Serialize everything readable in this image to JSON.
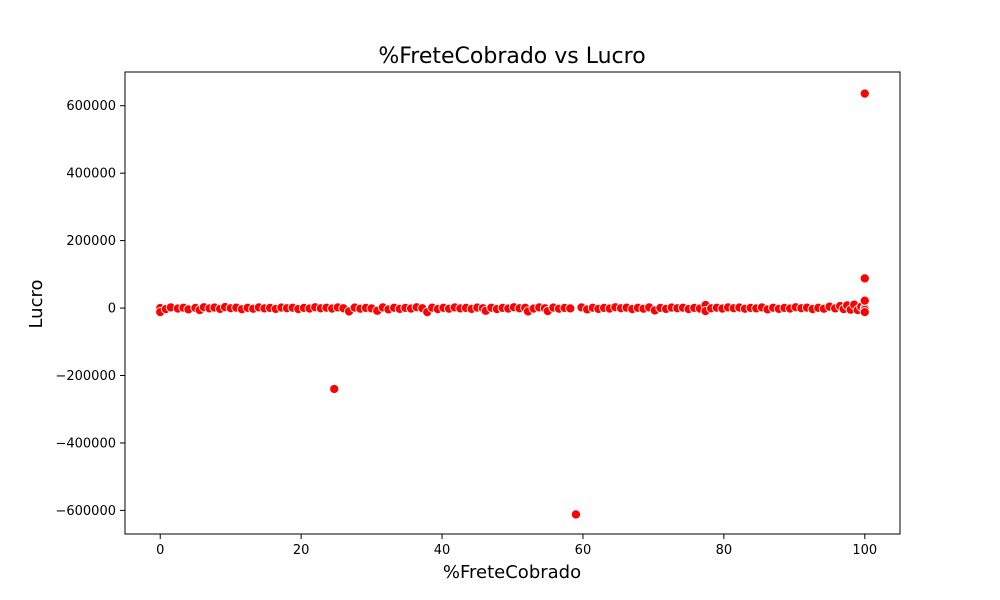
{
  "chart_data": {
    "type": "scatter",
    "title": "%FreteCobrado vs Lucro",
    "xlabel": "%FreteCobrado",
    "ylabel": "Lucro",
    "xlim": [
      -5,
      105
    ],
    "ylim": [
      -670000,
      700000
    ],
    "x_ticks": [
      0,
      20,
      40,
      60,
      80,
      100
    ],
    "x_tick_labels": [
      "0",
      "20",
      "40",
      "60",
      "80",
      "100"
    ],
    "y_ticks": [
      -600000,
      -400000,
      -200000,
      0,
      200000,
      400000,
      600000
    ],
    "y_tick_labels": [
      "−600000",
      "−400000",
      "−200000",
      "0",
      "200000",
      "400000",
      "600000"
    ],
    "grid": false,
    "legend": "none",
    "point_color": "#ff0000",
    "point_edge_color": "#ffffff",
    "series": [
      {
        "points": [
          [
            0,
            0
          ],
          [
            0,
            -12000
          ],
          [
            0.8,
            -3000
          ],
          [
            1.5,
            2000
          ],
          [
            2.5,
            -1500
          ],
          [
            3.3,
            1000
          ],
          [
            4.0,
            -4000
          ],
          [
            5.0,
            500
          ],
          [
            5.6,
            -6000
          ],
          [
            6.2,
            2500
          ],
          [
            7.0,
            -1000
          ],
          [
            7.7,
            1500
          ],
          [
            8.5,
            -2500
          ],
          [
            9.2,
            3000
          ],
          [
            10.0,
            -500
          ],
          [
            10.8,
            1200
          ],
          [
            11.6,
            -3500
          ],
          [
            12.4,
            800
          ],
          [
            13.2,
            -2000
          ],
          [
            14.0,
            2000
          ],
          [
            14.8,
            -1000
          ],
          [
            15.6,
            500
          ],
          [
            16.4,
            -2500
          ],
          [
            17.2,
            1500
          ],
          [
            18.0,
            -500
          ],
          [
            18.8,
            1000
          ],
          [
            19.6,
            -3000
          ],
          [
            20.4,
            500
          ],
          [
            21.2,
            -1500
          ],
          [
            22.0,
            2500
          ],
          [
            22.8,
            -800
          ],
          [
            23.6,
            1000
          ],
          [
            24.4,
            -1500
          ],
          [
            24.7,
            -240000
          ],
          [
            25.2,
            2000
          ],
          [
            26.0,
            -500
          ],
          [
            26.8,
            -10000
          ],
          [
            27.6,
            1500
          ],
          [
            28.4,
            -2000
          ],
          [
            29.2,
            500
          ],
          [
            30.0,
            -1000
          ],
          [
            30.8,
            -8000
          ],
          [
            31.6,
            2000
          ],
          [
            32.4,
            -4000
          ],
          [
            33.2,
            1000
          ],
          [
            34.0,
            -2500
          ],
          [
            34.8,
            500
          ],
          [
            35.6,
            -1500
          ],
          [
            36.4,
            2500
          ],
          [
            37.2,
            -500
          ],
          [
            37.9,
            -12000
          ],
          [
            38.6,
            1200
          ],
          [
            39.4,
            -3000
          ],
          [
            40.2,
            800
          ],
          [
            41.0,
            -2000
          ],
          [
            41.8,
            2000
          ],
          [
            42.6,
            -1000
          ],
          [
            43.4,
            500
          ],
          [
            44.2,
            -2500
          ],
          [
            45.0,
            1500
          ],
          [
            45.8,
            -500
          ],
          [
            46.2,
            -8000
          ],
          [
            47.0,
            1000
          ],
          [
            47.8,
            -3000
          ],
          [
            48.6,
            500
          ],
          [
            49.4,
            -1500
          ],
          [
            50.2,
            2500
          ],
          [
            51.0,
            -800
          ],
          [
            51.8,
            1000
          ],
          [
            52.2,
            -10000
          ],
          [
            53.0,
            -1500
          ],
          [
            53.8,
            2000
          ],
          [
            54.6,
            -500
          ],
          [
            55.0,
            -9000
          ],
          [
            55.8,
            1500
          ],
          [
            56.6,
            -2000
          ],
          [
            57.4,
            500
          ],
          [
            58.2,
            -1000
          ],
          [
            59.0,
            -612000
          ],
          [
            59.8,
            2000
          ],
          [
            60.6,
            -4000
          ],
          [
            61.4,
            1000
          ],
          [
            62.2,
            -2500
          ],
          [
            63.0,
            500
          ],
          [
            63.8,
            -1500
          ],
          [
            64.6,
            2500
          ],
          [
            65.4,
            -500
          ],
          [
            66.2,
            1200
          ],
          [
            67.0,
            -3000
          ],
          [
            67.8,
            800
          ],
          [
            68.6,
            -2000
          ],
          [
            69.4,
            2000
          ],
          [
            70.2,
            -7000
          ],
          [
            71.0,
            500
          ],
          [
            71.8,
            -2500
          ],
          [
            72.6,
            1500
          ],
          [
            73.4,
            -500
          ],
          [
            74.2,
            1000
          ],
          [
            75.0,
            -3000
          ],
          [
            75.8,
            500
          ],
          [
            76.6,
            -1500
          ],
          [
            77.4,
            9000
          ],
          [
            77.4,
            -9000
          ],
          [
            78.2,
            -800
          ],
          [
            79.0,
            1000
          ],
          [
            79.8,
            -1500
          ],
          [
            80.6,
            2000
          ],
          [
            81.4,
            -500
          ],
          [
            82.2,
            1500
          ],
          [
            83.0,
            -2000
          ],
          [
            83.8,
            500
          ],
          [
            84.6,
            -1000
          ],
          [
            85.4,
            2000
          ],
          [
            86.2,
            -4000
          ],
          [
            87.0,
            1000
          ],
          [
            87.8,
            -2500
          ],
          [
            88.6,
            500
          ],
          [
            89.4,
            -1500
          ],
          [
            90.2,
            2500
          ],
          [
            91.0,
            -500
          ],
          [
            91.8,
            1200
          ],
          [
            92.6,
            -3000
          ],
          [
            93.4,
            800
          ],
          [
            94.2,
            -2000
          ],
          [
            95.0,
            4000
          ],
          [
            95.8,
            -1000
          ],
          [
            96.5,
            6000
          ],
          [
            97.0,
            -3000
          ],
          [
            97.5,
            8000
          ],
          [
            98.0,
            -5000
          ],
          [
            98.5,
            10000
          ],
          [
            99.0,
            -6000
          ],
          [
            99.5,
            4000
          ],
          [
            100,
            0
          ],
          [
            100,
            -5000
          ],
          [
            100,
            -12000
          ],
          [
            100,
            22000
          ],
          [
            100,
            88000
          ],
          [
            100,
            636000
          ]
        ]
      }
    ]
  }
}
